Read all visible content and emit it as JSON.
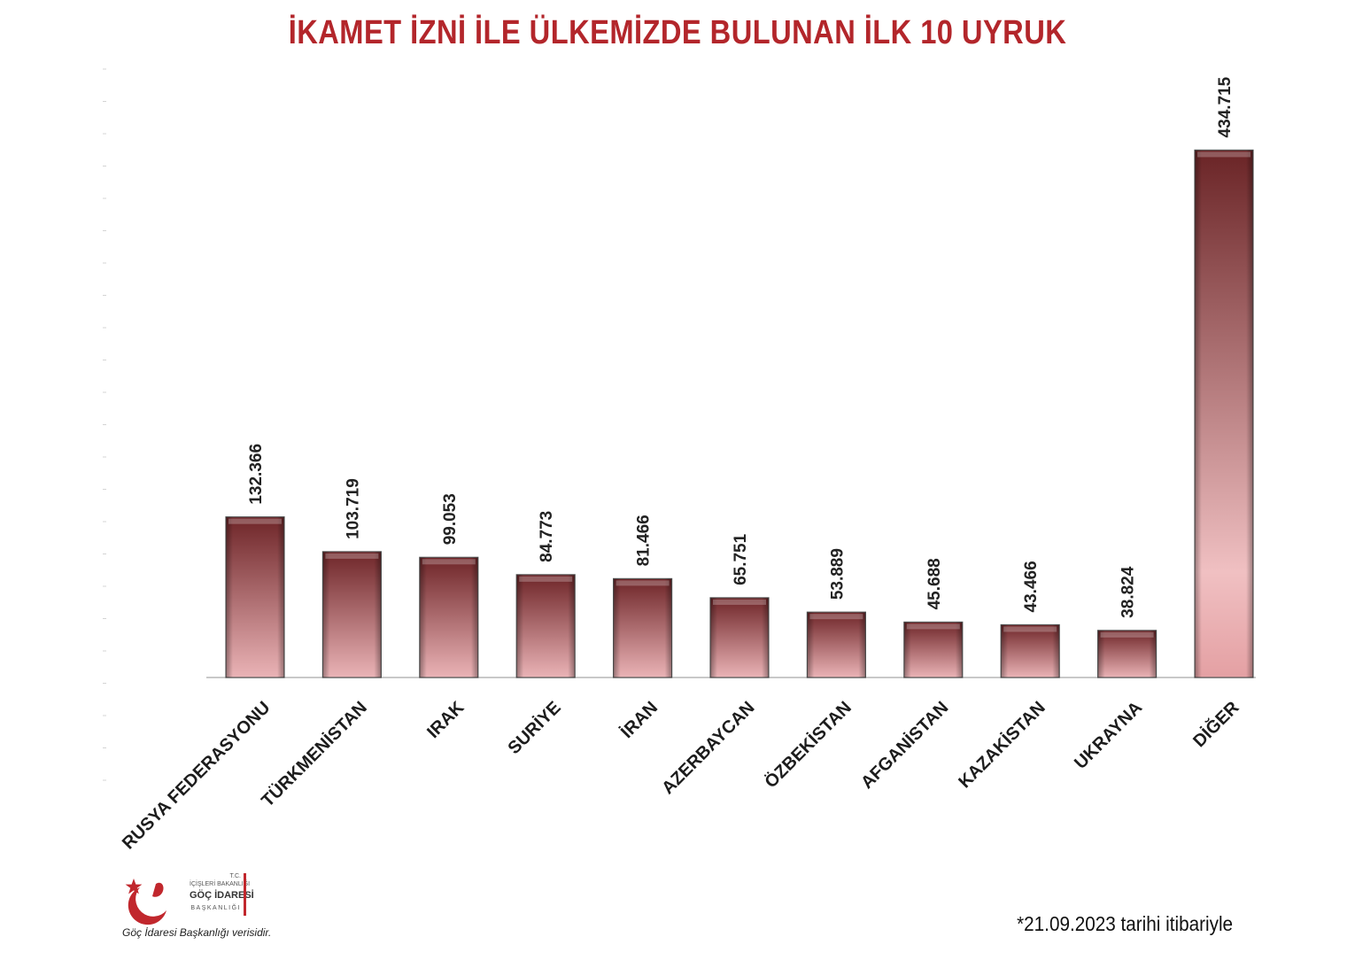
{
  "chart_data": {
    "type": "bar",
    "title": "İKAMET İZNİ İLE ÜLKEMİZDE BULUNAN İLK 10 UYRUK",
    "categories": [
      "RUSYA FEDERASYONU",
      "TÜRKMENİSTAN",
      "IRAK",
      "SURİYE",
      "İRAN",
      "AZERBAYCAN",
      "ÖZBEKİSTAN",
      "AFGANİSTAN",
      "KAZAKİSTAN",
      "UKRAYNA",
      "DİĞER"
    ],
    "values": [
      132366,
      103719,
      99053,
      84773,
      81466,
      65751,
      53889,
      45688,
      43466,
      38824,
      434715
    ],
    "value_labels": [
      "132.366",
      "103.719",
      "99.053",
      "84.773",
      "81.466",
      "65.751",
      "53.889",
      "45.688",
      "43.466",
      "38.824",
      "434.715"
    ],
    "ylim": [
      0,
      500000
    ],
    "grid": false,
    "legend": "none",
    "colors": {
      "bar_top": "#6e2528",
      "bar_bottom": "#eab3b6",
      "other_top": "#6a2426",
      "other_mid": "#f0c0c2",
      "other_bottom": "#e4a0a3",
      "title": "#b3262b"
    }
  },
  "logo": {
    "line1": "T.C.",
    "line2": "İÇİŞLERİ BAKANLIĞI",
    "line3": "GÖÇ İDARESİ",
    "line4": "BAŞKANLIĞI"
  },
  "footer": {
    "source": "Göç İdaresi Başkanlığı verisidir.",
    "date_note": "*21.09.2023 tarihi itibariyle"
  }
}
